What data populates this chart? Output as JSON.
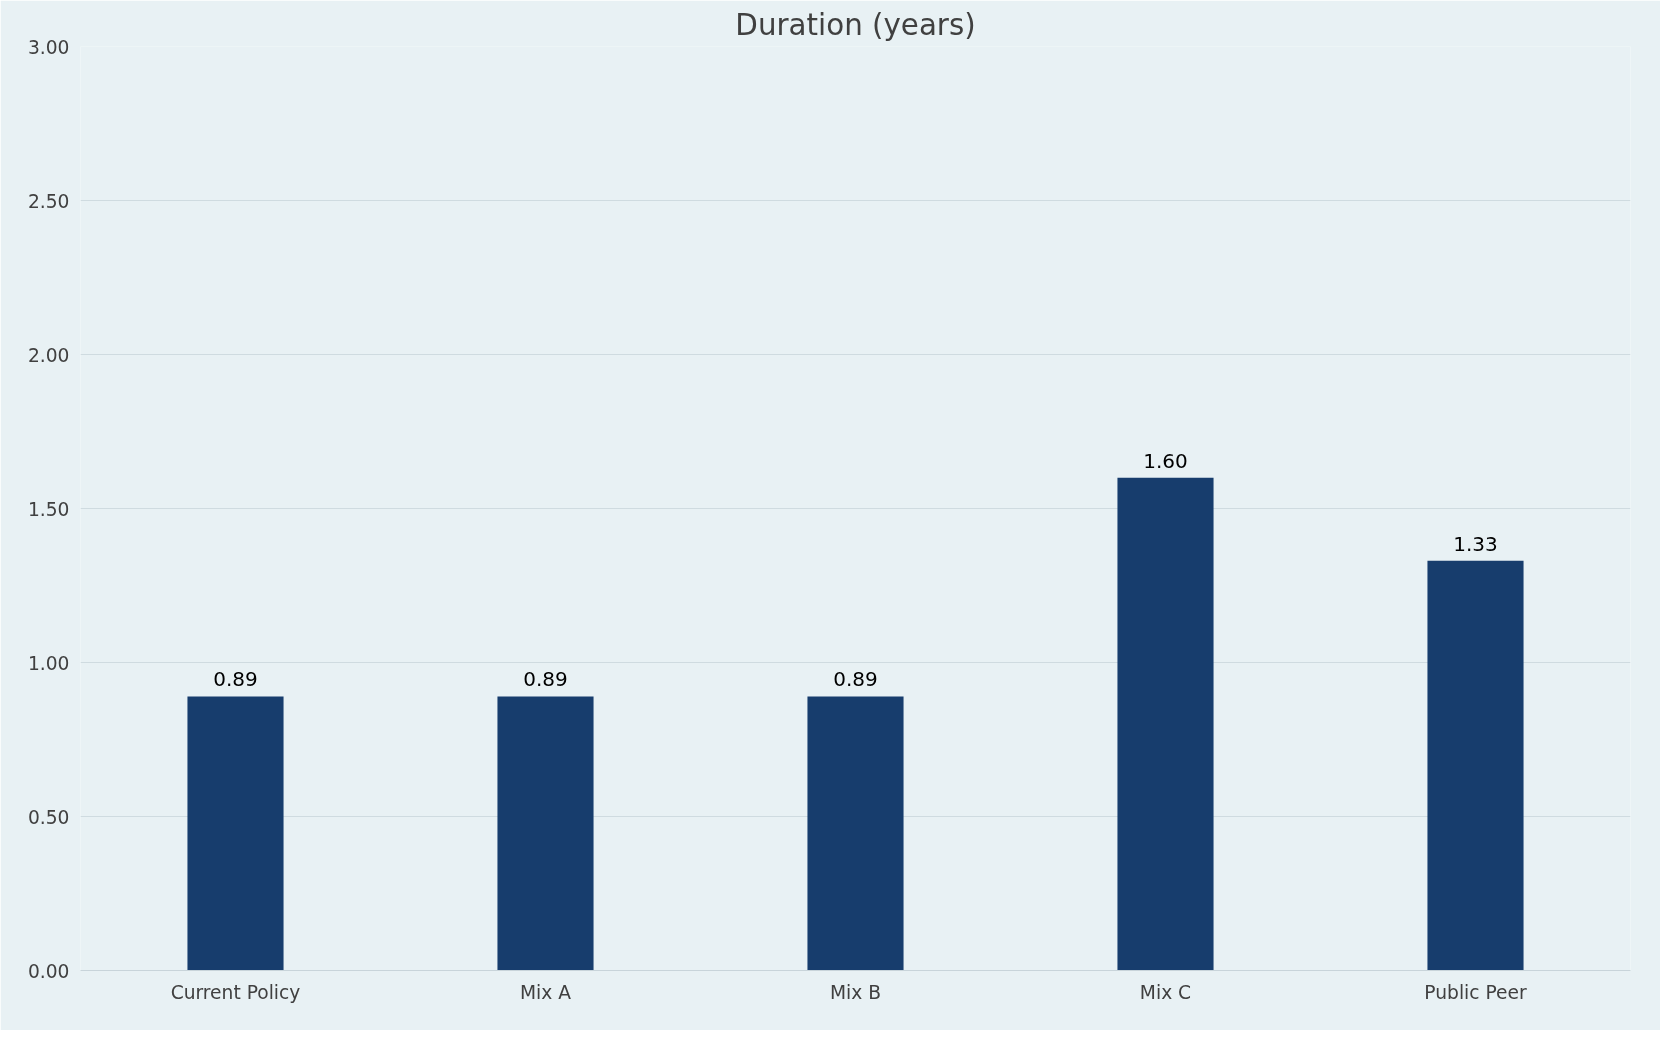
{
  "chart_data": {
    "type": "bar",
    "title": "Duration (years)",
    "categories": [
      "Current Policy",
      "Mix A",
      "Mix B",
      "Mix C",
      "Public Peer"
    ],
    "values": [
      0.89,
      0.89,
      0.89,
      1.6,
      1.33
    ],
    "value_labels": [
      "0.89",
      "0.89",
      "0.89",
      "1.60",
      "1.33"
    ],
    "color": "#173d6d",
    "ylim": [
      0,
      3
    ],
    "yticks": [
      {
        "value": 0,
        "label": "0.00"
      },
      {
        "value": 0.5,
        "label": "0.50"
      },
      {
        "value": 1,
        "label": "1.00"
      },
      {
        "value": 1.5,
        "label": "1.50"
      },
      {
        "value": 2,
        "label": "2.00"
      },
      {
        "value": 2.5,
        "label": "2.50"
      },
      {
        "value": 3,
        "label": "3.00"
      }
    ],
    "grid": "y"
  }
}
